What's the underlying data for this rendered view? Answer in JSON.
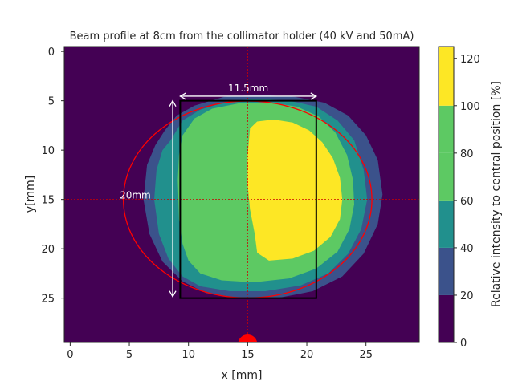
{
  "chart_data": {
    "type": "heatmap",
    "title": "Beam profile at 8cm from the collimator holder (40 kV and 50mA)",
    "xlabel": "x [mm]",
    "ylabel": "y[mm]",
    "xlim": [
      -0.5,
      29.5
    ],
    "ylim": [
      29.5,
      -0.5
    ],
    "x_ticks": [
      0,
      5,
      10,
      15,
      20,
      25
    ],
    "y_ticks": [
      0,
      5,
      10,
      15,
      20,
      25
    ],
    "colorbar": {
      "label": "Relative intensity to central position [%]",
      "levels": [
        0,
        20,
        40,
        60,
        80,
        100,
        125
      ],
      "ticks": [
        0,
        20,
        40,
        60,
        80,
        100,
        120
      ],
      "colors": [
        "#440154",
        "#3b528b",
        "#21908d",
        "#5dc963",
        "#5dc963",
        "#fde725"
      ]
    },
    "contours": [
      {
        "level": "0-20",
        "color": "#440154",
        "region": "background"
      },
      {
        "level": "20-40",
        "color": "#3b528b",
        "points": [
          [
            8,
            8
          ],
          [
            9,
            6.5
          ],
          [
            10.5,
            5.5
          ],
          [
            13,
            4.6
          ],
          [
            16,
            4.4
          ],
          [
            19,
            4.6
          ],
          [
            21.5,
            5.2
          ],
          [
            23.5,
            6.5
          ],
          [
            25,
            8.5
          ],
          [
            26,
            11
          ],
          [
            26.4,
            14.5
          ],
          [
            26,
            17.5
          ],
          [
            24.8,
            20.5
          ],
          [
            23,
            22.8
          ],
          [
            20.5,
            24.3
          ],
          [
            17.5,
            25
          ],
          [
            14.5,
            25
          ],
          [
            11.5,
            24.5
          ],
          [
            9.5,
            23.3
          ],
          [
            7.8,
            21.3
          ],
          [
            6.7,
            18.5
          ],
          [
            6.2,
            15
          ],
          [
            6.5,
            11.5
          ],
          [
            7.2,
            9.5
          ]
        ]
      },
      {
        "level": "40-60",
        "color": "#21908d",
        "points": [
          [
            8.5,
            9
          ],
          [
            9.5,
            7
          ],
          [
            11,
            5.9
          ],
          [
            13.5,
            5
          ],
          [
            16,
            4.8
          ],
          [
            18.5,
            5
          ],
          [
            20.8,
            5.6
          ],
          [
            22.6,
            7
          ],
          [
            24,
            9
          ],
          [
            24.8,
            12
          ],
          [
            25.1,
            15
          ],
          [
            24.6,
            18
          ],
          [
            23.5,
            20.5
          ],
          [
            21.8,
            22.5
          ],
          [
            19.5,
            23.7
          ],
          [
            16.5,
            24.3
          ],
          [
            13.5,
            24.3
          ],
          [
            11,
            23.8
          ],
          [
            9.5,
            22.8
          ],
          [
            8.3,
            21
          ],
          [
            7.5,
            18.5
          ],
          [
            7.1,
            15
          ],
          [
            7.3,
            12
          ],
          [
            7.8,
            10
          ]
        ]
      },
      {
        "level": "60-80",
        "color": "#5dc963",
        "points": [
          [
            9.5,
            8.5
          ],
          [
            10.5,
            6.8
          ],
          [
            12,
            5.8
          ],
          [
            14.5,
            5.2
          ],
          [
            17,
            5.2
          ],
          [
            19.2,
            5.6
          ],
          [
            21,
            6.6
          ],
          [
            22.4,
            8.2
          ],
          [
            23.4,
            10.5
          ],
          [
            23.9,
            13
          ],
          [
            24,
            15.5
          ],
          [
            23.6,
            18
          ],
          [
            22.6,
            20.3
          ],
          [
            20.8,
            22
          ],
          [
            18.5,
            23
          ],
          [
            15.5,
            23.4
          ],
          [
            12.8,
            23.2
          ],
          [
            11,
            22.5
          ],
          [
            10,
            21.2
          ],
          [
            9.5,
            19.5
          ],
          [
            9.2,
            17
          ],
          [
            9.1,
            13
          ],
          [
            9.2,
            10.5
          ]
        ]
      },
      {
        "level": "80-100",
        "color": "#5dc963",
        "region": "inner"
      },
      {
        "level": "100-125",
        "color": "#fde725",
        "points": [
          [
            15.2,
            7.8
          ],
          [
            15.8,
            7.1
          ],
          [
            17.2,
            6.9
          ],
          [
            18.8,
            7.2
          ],
          [
            20.2,
            8
          ],
          [
            21.3,
            9.2
          ],
          [
            22.2,
            10.8
          ],
          [
            22.8,
            12.8
          ],
          [
            23,
            15
          ],
          [
            22.8,
            17
          ],
          [
            22,
            18.8
          ],
          [
            20.6,
            20.2
          ],
          [
            18.8,
            21
          ],
          [
            16.8,
            21.2
          ],
          [
            15.8,
            20.4
          ],
          [
            15.6,
            18.5
          ],
          [
            15.2,
            16
          ],
          [
            15,
            13.5
          ],
          [
            15,
            10.5
          ]
        ]
      }
    ],
    "annotations": {
      "rectangle": {
        "x0": 9.3,
        "x1": 20.8,
        "y0": 5,
        "y1": 25,
        "color": "#000000"
      },
      "circle": {
        "cx": 15,
        "cy": 15,
        "r": 10.5,
        "color": "#ff0000"
      },
      "crosshair": {
        "x": 15,
        "y": 15,
        "color": "#cc0000"
      },
      "width_arrow": {
        "x0": 9.3,
        "x1": 20.8,
        "y": 4.7,
        "label": "11.5mm"
      },
      "height_arrow": {
        "x": 8.8,
        "y0": 5,
        "y1": 25,
        "label": "20mm"
      },
      "marker": {
        "x": 15,
        "y": 29.5,
        "color": "#ff0000"
      }
    }
  }
}
